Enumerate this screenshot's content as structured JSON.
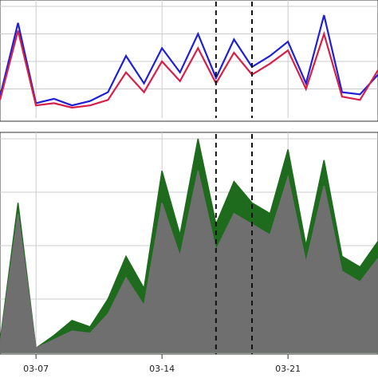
{
  "chart_data": [
    {
      "type": "line",
      "panel": "top",
      "title": "",
      "xlabel": "",
      "ylabel": "",
      "grid": true,
      "legend": "none",
      "x": [
        "03-05",
        "03-06",
        "03-07",
        "03-08",
        "03-09",
        "03-10",
        "03-11",
        "03-12",
        "03-13",
        "03-14",
        "03-15",
        "03-16",
        "03-17",
        "03-18",
        "03-19",
        "03-20",
        "03-21",
        "03-22",
        "03-23",
        "03-24",
        "03-25",
        "03-26"
      ],
      "ylim": [
        0,
        1
      ],
      "series": [
        {
          "color": "#1f1fd6",
          "values": [
            0.18,
            0.85,
            0.12,
            0.16,
            0.1,
            0.14,
            0.22,
            0.55,
            0.3,
            0.62,
            0.4,
            0.75,
            0.35,
            0.7,
            0.45,
            0.55,
            0.68,
            0.3,
            0.92,
            0.22,
            0.2,
            0.38
          ]
        },
        {
          "color": "#d6204a",
          "values": [
            0.15,
            0.78,
            0.1,
            0.12,
            0.08,
            0.1,
            0.15,
            0.4,
            0.22,
            0.5,
            0.32,
            0.62,
            0.3,
            0.58,
            0.38,
            0.48,
            0.6,
            0.25,
            0.75,
            0.18,
            0.15,
            0.42
          ]
        }
      ],
      "vlines": [
        "03-17",
        "03-19"
      ],
      "xticks": [
        "03-07",
        "03-14",
        "03-21"
      ]
    },
    {
      "type": "area",
      "panel": "bottom",
      "title": "",
      "xlabel": "",
      "ylabel": "",
      "grid": true,
      "legend": "none",
      "x": [
        "03-05",
        "03-06",
        "03-07",
        "03-08",
        "03-09",
        "03-10",
        "03-11",
        "03-12",
        "03-13",
        "03-14",
        "03-15",
        "03-16",
        "03-17",
        "03-18",
        "03-19",
        "03-20",
        "03-21",
        "03-22",
        "03-23",
        "03-24",
        "03-25",
        "03-26"
      ],
      "ylim": [
        0,
        1
      ],
      "series": [
        {
          "color": "#1e6b1e",
          "values": [
            0.05,
            0.7,
            0.02,
            0.08,
            0.15,
            0.12,
            0.25,
            0.45,
            0.3,
            0.85,
            0.55,
            1.0,
            0.6,
            0.8,
            0.7,
            0.65,
            0.95,
            0.5,
            0.9,
            0.45,
            0.4,
            0.52
          ]
        },
        {
          "color": "#6f6f6f",
          "values": [
            0.04,
            0.65,
            0.02,
            0.06,
            0.1,
            0.09,
            0.18,
            0.35,
            0.22,
            0.7,
            0.45,
            0.85,
            0.48,
            0.65,
            0.6,
            0.55,
            0.82,
            0.42,
            0.78,
            0.38,
            0.33,
            0.44
          ]
        }
      ],
      "vlines": [
        "03-17",
        "03-19"
      ],
      "xticks": [
        "03-07",
        "03-14",
        "03-21"
      ]
    }
  ]
}
